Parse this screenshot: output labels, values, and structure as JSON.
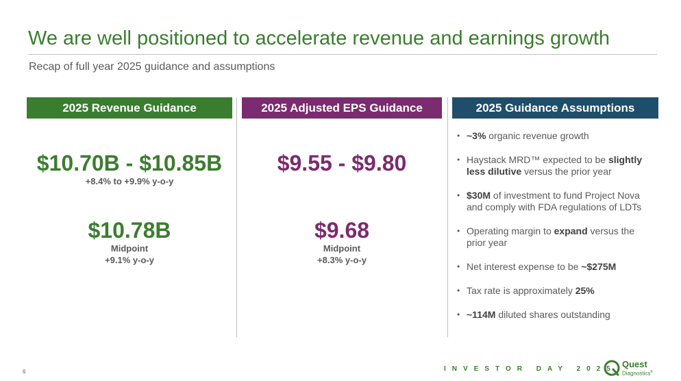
{
  "header": {
    "title": "We are well positioned to accelerate revenue and earnings growth",
    "subtitle": "Recap of full year 2025 guidance and assumptions"
  },
  "revenue": {
    "heading": "2025 Revenue Guidance",
    "range": "$10.70B - $10.85B",
    "range_growth": "+8.4% to +9.9% y-o-y",
    "midpoint_value": "$10.78B",
    "midpoint_label": "Midpoint",
    "midpoint_growth": "+9.1% y-o-y"
  },
  "eps": {
    "heading": "2025 Adjusted EPS Guidance",
    "range": "$9.55 - $9.80",
    "midpoint_value": "$9.68",
    "midpoint_label": "Midpoint",
    "midpoint_growth": "+8.3% y-o-y"
  },
  "assumptions": {
    "heading": "2025 Guidance Assumptions",
    "items": [
      {
        "bold1": "~3%",
        "text1": " organic revenue growth",
        "bold2": "",
        "text2": ""
      },
      {
        "bold1": "",
        "text1": "Haystack MRD™ expected to be ",
        "bold2": "slightly less dilutive",
        "text2": " versus the prior year"
      },
      {
        "bold1": "$30M",
        "text1": " of investment to fund Project Nova and comply with FDA regulations of LDTs",
        "bold2": "",
        "text2": ""
      },
      {
        "bold1": "",
        "text1": "Operating margin to ",
        "bold2": "expand",
        "text2": " versus the prior year"
      },
      {
        "bold1": "",
        "text1": "Net interest expense to be ",
        "bold2": "~$275M",
        "text2": ""
      },
      {
        "bold1": "",
        "text1": "Tax rate is approximately ",
        "bold2": "25%",
        "text2": ""
      },
      {
        "bold1": "~114M",
        "text1": " diluted shares outstanding",
        "bold2": "",
        "text2": ""
      }
    ]
  },
  "footer": {
    "page_number": "6",
    "event": "INVESTOR DAY 2025",
    "logo_word": "Quest",
    "logo_sub": "Diagnostics",
    "logo_mark": "®"
  },
  "colors": {
    "green": "#3b7d2f",
    "purple": "#7b2b6f",
    "navy": "#1f4e6b"
  }
}
